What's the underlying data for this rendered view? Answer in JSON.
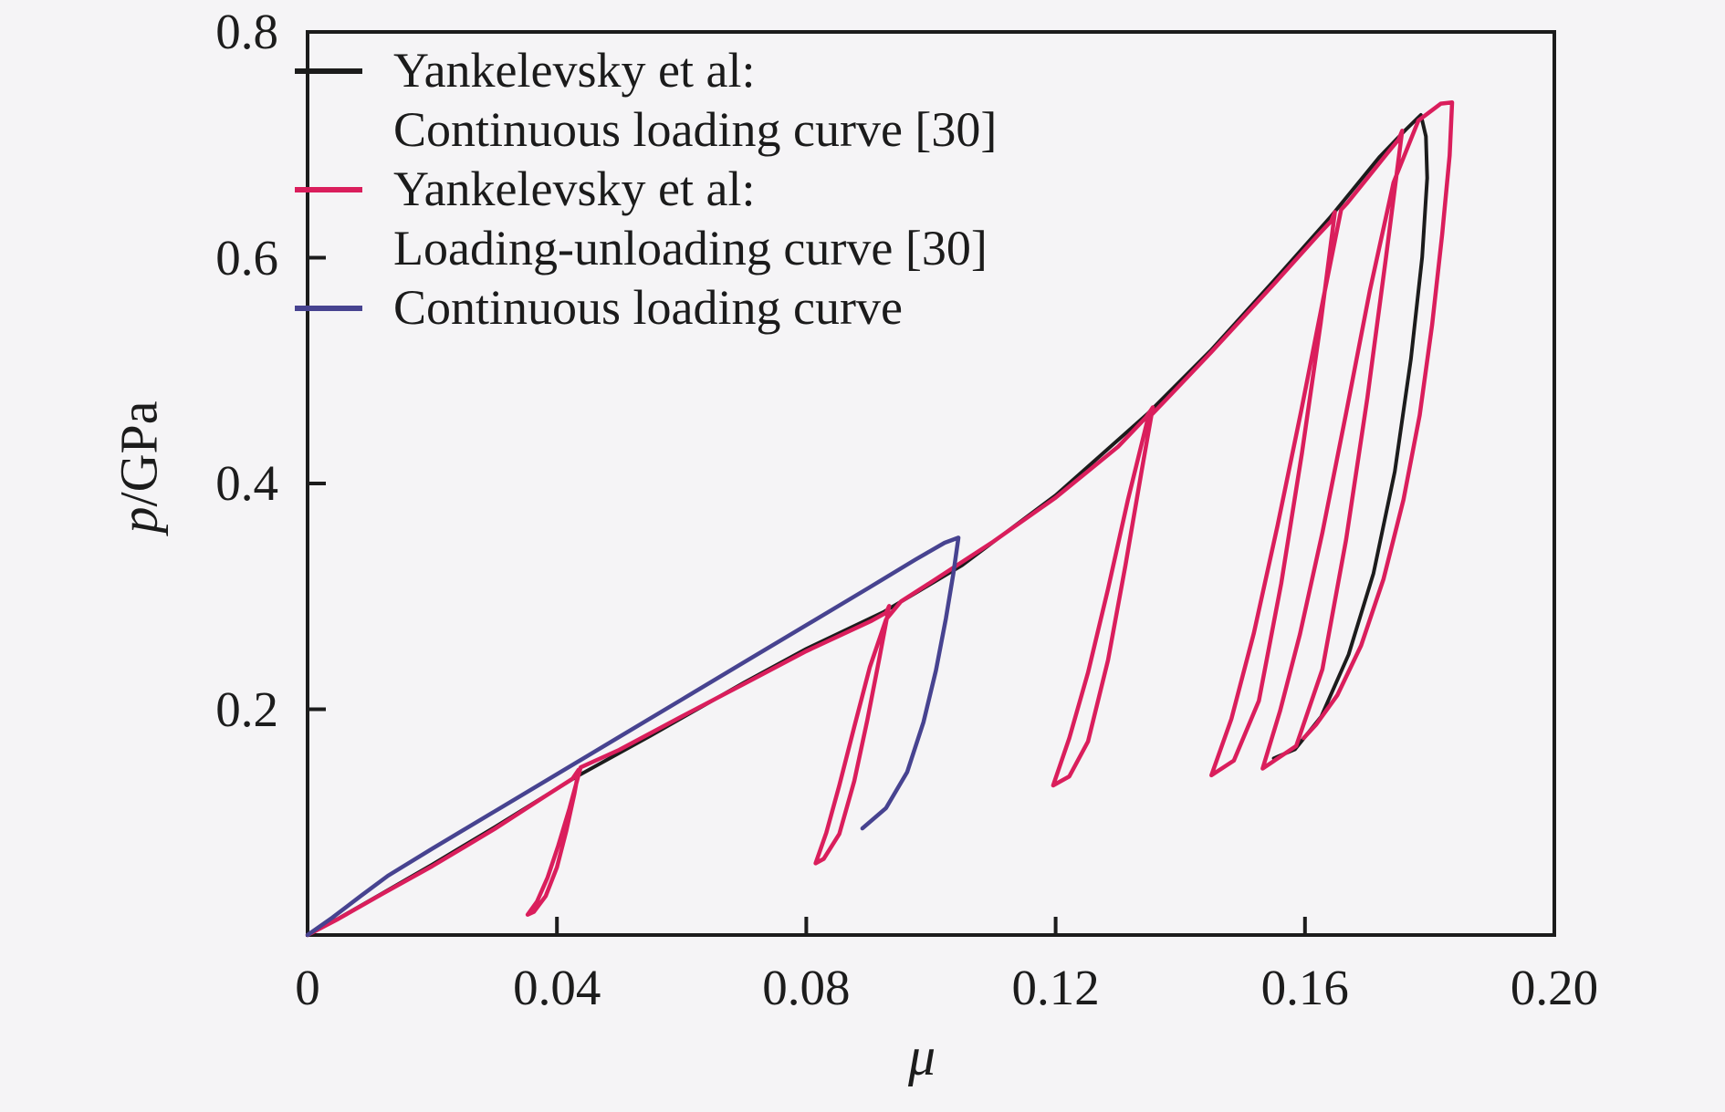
{
  "figure": {
    "background": "#f5f4f6",
    "axis_color": "#1c1c1c"
  },
  "chart_data": {
    "type": "line",
    "title": "",
    "xlabel": "μ",
    "ylabel_italic": "p",
    "ylabel_rest": "/GPa",
    "xlim": [
      0,
      0.2
    ],
    "ylim": [
      0,
      0.8
    ],
    "grid": false,
    "legend_position": "top-left-inside",
    "x_ticks": [
      0,
      0.04,
      0.08,
      0.12,
      0.16,
      0.2
    ],
    "x_tick_labels": [
      "0",
      "0.04",
      "0.08",
      "0.12",
      "0.16",
      "0.20"
    ],
    "y_ticks": [
      0.2,
      0.4,
      0.6,
      0.8
    ],
    "y_tick_labels": [
      "0.2",
      "0.4",
      "0.6",
      "0.8"
    ],
    "legend": [
      {
        "series": "black",
        "lines": [
          "Yankelevsky et al:",
          "Continuous loading curve [30]"
        ]
      },
      {
        "series": "red",
        "lines": [
          "Yankelevsky et al:",
          "Loading-unloading curve [30]"
        ]
      },
      {
        "series": "blue",
        "lines": [
          "Continuous loading curve"
        ]
      }
    ],
    "series": [
      {
        "id": "black",
        "name": "Yankelevsky et al: Continuous loading curve [30]",
        "color": "#1c1c1c",
        "width": 4,
        "points": [
          [
            0,
            0
          ],
          [
            0.005,
            0.0148
          ],
          [
            0.012,
            0.037
          ],
          [
            0.02,
            0.0625
          ],
          [
            0.03,
            0.0955
          ],
          [
            0.0432,
            0.1405
          ],
          [
            0.055,
            0.1765
          ],
          [
            0.07,
            0.2235
          ],
          [
            0.08,
            0.2535
          ],
          [
            0.0925,
            0.2865
          ],
          [
            0.105,
            0.3275
          ],
          [
            0.12,
            0.3895
          ],
          [
            0.1347,
            0.4615
          ],
          [
            0.145,
            0.5185
          ],
          [
            0.155,
            0.5795
          ],
          [
            0.164,
            0.6355
          ],
          [
            0.172,
            0.6895
          ],
          [
            0.1762,
            0.7135
          ],
          [
            0.1786,
            0.7265
          ],
          [
            0.1794,
            0.7075
          ],
          [
            0.1796,
            0.6705
          ],
          [
            0.1788,
            0.6005
          ],
          [
            0.177,
            0.5105
          ],
          [
            0.1744,
            0.4105
          ],
          [
            0.171,
            0.3205
          ],
          [
            0.167,
            0.2485
          ],
          [
            0.1626,
            0.1935
          ],
          [
            0.1584,
            0.1645
          ],
          [
            0.155,
            0.1565
          ]
        ]
      },
      {
        "id": "red",
        "name": "Yankelevsky et al: Loading-unloading curve [30]",
        "color": "#da1e5c",
        "width": 4.5,
        "points": [
          [
            0,
            0
          ],
          [
            0.005,
            0.0145
          ],
          [
            0.012,
            0.0365
          ],
          [
            0.02,
            0.061
          ],
          [
            0.03,
            0.094
          ],
          [
            0.038,
            0.1225
          ],
          [
            0.0425,
            0.1385
          ],
          [
            0.0435,
            0.1465
          ],
          [
            0.0428,
            0.125
          ],
          [
            0.0415,
            0.092
          ],
          [
            0.04,
            0.06
          ],
          [
            0.0382,
            0.0345
          ],
          [
            0.0363,
            0.0205
          ],
          [
            0.0353,
            0.018
          ],
          [
            0.0368,
            0.0295
          ],
          [
            0.0385,
            0.051
          ],
          [
            0.0402,
            0.079
          ],
          [
            0.042,
            0.112
          ],
          [
            0.0438,
            0.1485
          ],
          [
            0.05,
            0.164
          ],
          [
            0.06,
            0.1935
          ],
          [
            0.07,
            0.2225
          ],
          [
            0.08,
            0.2515
          ],
          [
            0.0905,
            0.2785
          ],
          [
            0.0928,
            0.2855
          ],
          [
            0.0933,
            0.2915
          ],
          [
            0.0917,
            0.2445
          ],
          [
            0.0898,
            0.1905
          ],
          [
            0.0877,
            0.1365
          ],
          [
            0.0853,
            0.0895
          ],
          [
            0.0828,
            0.0675
          ],
          [
            0.0815,
            0.0635
          ],
          [
            0.0832,
            0.0905
          ],
          [
            0.0853,
            0.1325
          ],
          [
            0.0877,
            0.1845
          ],
          [
            0.0902,
            0.2375
          ],
          [
            0.0928,
            0.2795
          ],
          [
            0.0952,
            0.2955
          ],
          [
            0.1,
            0.3125
          ],
          [
            0.11,
            0.3485
          ],
          [
            0.12,
            0.3875
          ],
          [
            0.13,
            0.4325
          ],
          [
            0.1345,
            0.4585
          ],
          [
            0.1356,
            0.4675
          ],
          [
            0.1338,
            0.4115
          ],
          [
            0.1312,
            0.3275
          ],
          [
            0.1284,
            0.2435
          ],
          [
            0.1252,
            0.1715
          ],
          [
            0.1222,
            0.1405
          ],
          [
            0.1196,
            0.1325
          ],
          [
            0.1222,
            0.1745
          ],
          [
            0.1252,
            0.2325
          ],
          [
            0.1284,
            0.3065
          ],
          [
            0.1316,
            0.3855
          ],
          [
            0.1348,
            0.4575
          ],
          [
            0.1376,
            0.4735
          ],
          [
            0.145,
            0.5165
          ],
          [
            0.155,
            0.5765
          ],
          [
            0.162,
            0.6195
          ],
          [
            0.1642,
            0.6325
          ],
          [
            0.1648,
            0.6405
          ],
          [
            0.1625,
            0.5415
          ],
          [
            0.1595,
            0.4265
          ],
          [
            0.1562,
            0.3115
          ],
          [
            0.1526,
            0.2075
          ],
          [
            0.1486,
            0.1545
          ],
          [
            0.145,
            0.1415
          ],
          [
            0.1482,
            0.1915
          ],
          [
            0.1518,
            0.2675
          ],
          [
            0.1556,
            0.3625
          ],
          [
            0.1594,
            0.4645
          ],
          [
            0.163,
            0.5655
          ],
          [
            0.1658,
            0.6425
          ],
          [
            0.1668,
            0.6485
          ],
          [
            0.17,
            0.6705
          ],
          [
            0.1732,
            0.6925
          ],
          [
            0.175,
            0.7045
          ],
          [
            0.1756,
            0.7125
          ],
          [
            0.173,
            0.6005
          ],
          [
            0.17,
            0.4755
          ],
          [
            0.1666,
            0.3505
          ],
          [
            0.1628,
            0.2355
          ],
          [
            0.1586,
            0.1675
          ],
          [
            0.1532,
            0.1475
          ],
          [
            0.156,
            0.1985
          ],
          [
            0.1592,
            0.2665
          ],
          [
            0.1628,
            0.3565
          ],
          [
            0.1666,
            0.4625
          ],
          [
            0.1704,
            0.5705
          ],
          [
            0.1742,
            0.6665
          ],
          [
            0.1782,
            0.7215
          ],
          [
            0.1818,
            0.7365
          ],
          [
            0.1836,
            0.7375
          ],
          [
            0.1832,
            0.6905
          ],
          [
            0.182,
            0.6205
          ],
          [
            0.1804,
            0.5405
          ],
          [
            0.1784,
            0.4605
          ],
          [
            0.1758,
            0.3855
          ],
          [
            0.1726,
            0.3155
          ],
          [
            0.169,
            0.2565
          ],
          [
            0.1652,
            0.2125
          ],
          [
            0.1618,
            0.1865
          ],
          [
            0.1598,
            0.1745
          ]
        ]
      },
      {
        "id": "blue",
        "name": "Continuous loading curve",
        "color": "#474390",
        "width": 4.5,
        "points": [
          [
            0,
            0
          ],
          [
            0.004,
            0.0155
          ],
          [
            0.0085,
            0.0345
          ],
          [
            0.0129,
            0.0525
          ],
          [
            0.02,
            0.0765
          ],
          [
            0.03,
            0.1095
          ],
          [
            0.04,
            0.1425
          ],
          [
            0.05,
            0.1755
          ],
          [
            0.06,
            0.2085
          ],
          [
            0.07,
            0.2415
          ],
          [
            0.08,
            0.2745
          ],
          [
            0.09,
            0.3075
          ],
          [
            0.0975,
            0.3325
          ],
          [
            0.1022,
            0.3475
          ],
          [
            0.1044,
            0.352
          ],
          [
            0.1036,
            0.3205
          ],
          [
            0.1024,
            0.2805
          ],
          [
            0.1008,
            0.2345
          ],
          [
            0.0988,
            0.1885
          ],
          [
            0.0962,
            0.1445
          ],
          [
            0.0928,
            0.1125
          ],
          [
            0.089,
            0.0945
          ]
        ]
      }
    ]
  }
}
